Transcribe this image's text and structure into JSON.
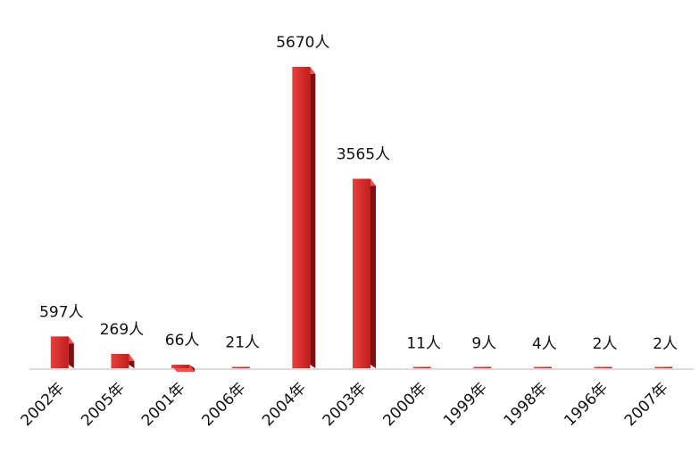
{
  "chart_data": {
    "type": "bar",
    "categories": [
      "2002年",
      "2005年",
      "2001年",
      "2006年",
      "2004年",
      "2003年",
      "2000年",
      "1999年",
      "1998年",
      "1996年",
      "2007年"
    ],
    "values": [
      597,
      269,
      66,
      21,
      5670,
      3565,
      11,
      9,
      4,
      2,
      2
    ],
    "value_labels": [
      "597人",
      "269人",
      "66人",
      "21人",
      "5670人",
      "3565人",
      "11人",
      "9人",
      "4人",
      "2人",
      "2人"
    ],
    "color": "#d42a2a"
  }
}
